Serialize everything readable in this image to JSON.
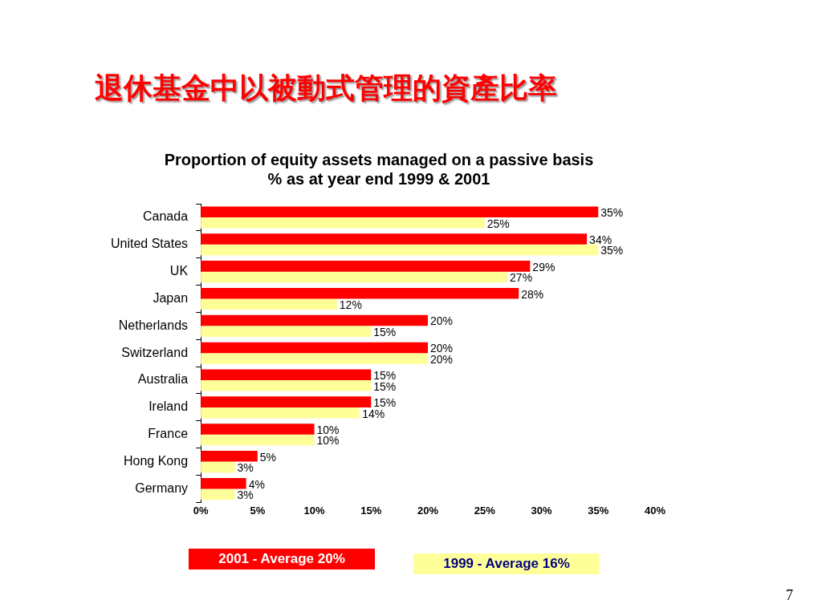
{
  "chart_data": {
    "type": "bar",
    "orientation": "horizontal",
    "title": "退休基金中以被動式管理的資產比率",
    "subtitle": "Proportion of equity assets managed on a passive basis\n% as at year end 1999 & 2001",
    "categories": [
      "Canada",
      "United States",
      "UK",
      "Japan",
      "Netherlands",
      "Switzerland",
      "Australia",
      "Ireland",
      "France",
      "Hong Kong",
      "Germany"
    ],
    "series": [
      {
        "name": "2001 - Average 20%",
        "color": "#ff0000",
        "values": [
          35,
          34,
          29,
          28,
          20,
          20,
          15,
          15,
          10,
          5,
          4
        ],
        "value_labels": [
          "35%",
          "34%",
          "29%",
          "28%",
          "20%",
          "20%",
          "15%",
          "15%",
          "10%",
          "5%",
          "4%"
        ]
      },
      {
        "name": "1999 - Average 16%",
        "color": "#ffff99",
        "values": [
          25,
          35,
          27,
          12,
          15,
          20,
          15,
          14,
          10,
          3,
          3
        ],
        "value_labels": [
          "25%",
          "35%",
          "27%",
          "12%",
          "15%",
          "20%",
          "15%",
          "14%",
          "10%",
          "3%",
          "3%"
        ]
      }
    ],
    "xlim": [
      0,
      40
    ],
    "xticks": [
      {
        "value": 0,
        "label": "0%"
      },
      {
        "value": 5,
        "label": "5%"
      },
      {
        "value": 10,
        "label": "10%"
      },
      {
        "value": 15,
        "label": "15%"
      },
      {
        "value": 20,
        "label": "20%"
      },
      {
        "value": 25,
        "label": "25%"
      },
      {
        "value": 30,
        "label": "30%"
      },
      {
        "value": 35,
        "label": "35%"
      },
      {
        "value": 40,
        "label": "40%"
      }
    ],
    "grid": false,
    "legend": "bottom",
    "annotations": [
      "7"
    ]
  }
}
